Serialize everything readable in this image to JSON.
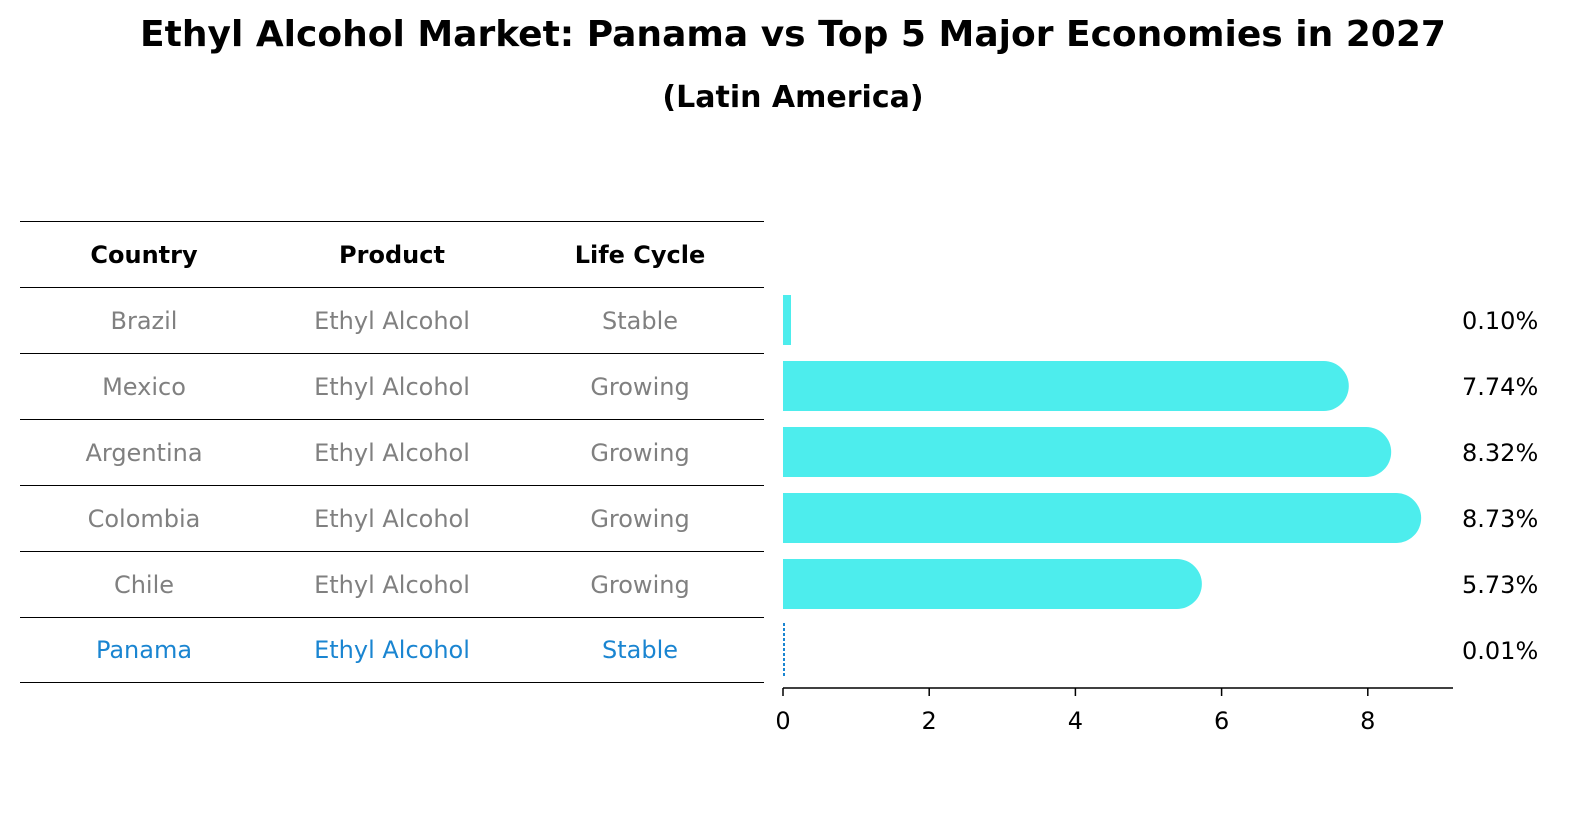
{
  "title": "Ethyl Alcohol Market: Panama vs Top 5 Major Economies in 2027",
  "subtitle": "(Latin America)",
  "colors": {
    "bar": "#4deded",
    "highlight": "#1a85d1",
    "muted": "#808080"
  },
  "table": {
    "headers": [
      "Country",
      "Product",
      "Life Cycle"
    ],
    "rows": [
      [
        "Brazil",
        "Ethyl Alcohol",
        "Stable"
      ],
      [
        "Mexico",
        "Ethyl Alcohol",
        "Growing"
      ],
      [
        "Argentina",
        "Ethyl Alcohol",
        "Growing"
      ],
      [
        "Colombia",
        "Ethyl Alcohol",
        "Growing"
      ],
      [
        "Chile",
        "Ethyl Alcohol",
        "Growing"
      ],
      [
        "Panama",
        "Ethyl Alcohol",
        "Stable"
      ]
    ]
  },
  "chart_data": {
    "type": "bar",
    "orientation": "horizontal",
    "categories": [
      "Brazil",
      "Mexico",
      "Argentina",
      "Colombia",
      "Chile",
      "Panama"
    ],
    "values": [
      0.1,
      7.74,
      8.32,
      8.73,
      5.73,
      0.01
    ],
    "value_labels": [
      "0.10%",
      "7.74%",
      "8.32%",
      "8.73%",
      "5.73%",
      "0.01%"
    ],
    "highlight": "Panama",
    "xticks": [
      "0",
      "2",
      "4",
      "6",
      "8"
    ],
    "xlim": [
      0,
      9.2
    ],
    "grid": false
  }
}
